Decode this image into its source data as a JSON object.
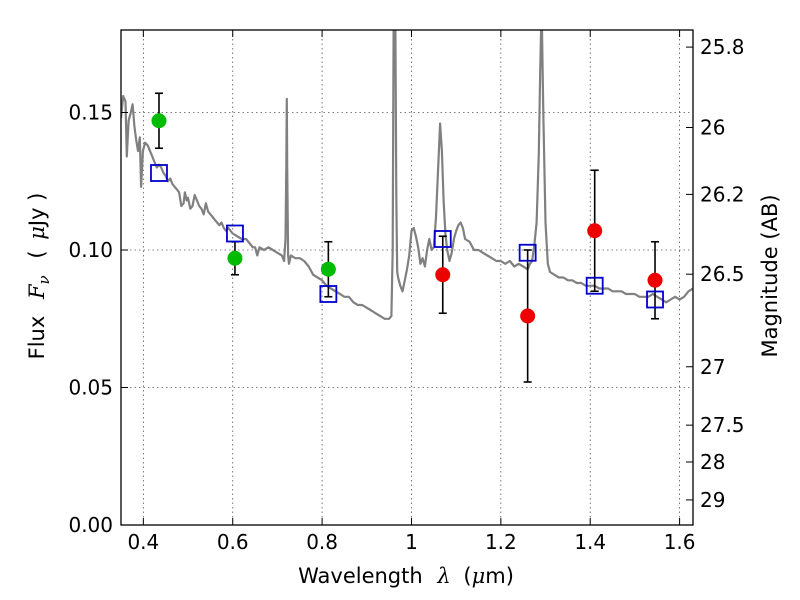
{
  "chart_data": {
    "type": "scatter",
    "title": "",
    "xlabel": {
      "prefix": "Wavelength",
      "symbol": "λ",
      "unit_open": "(",
      "unit_mu": "μ",
      "unit_rest": "m)"
    },
    "ylabel": {
      "prefix": "Flux",
      "symbol": "F",
      "subscript": "ν",
      "unit_open": "(",
      "unit_mu": "μ",
      "unit_rest": "Jy )"
    },
    "ylabel_right": "Magnitude (AB)",
    "xlim": [
      0.35,
      1.63
    ],
    "ylim": [
      0.0,
      0.18
    ],
    "grid": true,
    "x_ticks": [
      {
        "value": 0.4,
        "label": "0.4"
      },
      {
        "value": 0.6,
        "label": "0.6"
      },
      {
        "value": 0.8,
        "label": "0.8"
      },
      {
        "value": 1.0,
        "label": "1"
      },
      {
        "value": 1.2,
        "label": "1.2"
      },
      {
        "value": 1.4,
        "label": "1.4"
      },
      {
        "value": 1.6,
        "label": "1.6"
      }
    ],
    "y_ticks": [
      {
        "value": 0.0,
        "label": "0.00"
      },
      {
        "value": 0.05,
        "label": "0.05"
      },
      {
        "value": 0.1,
        "label": "0.10"
      },
      {
        "value": 0.15,
        "label": "0.15"
      }
    ],
    "magnitude_ticks": [
      {
        "mag": 25.8,
        "label": "25.8"
      },
      {
        "mag": 26.0,
        "label": "26"
      },
      {
        "mag": 26.2,
        "label": "26.2"
      },
      {
        "mag": 26.5,
        "label": "26.5"
      },
      {
        "mag": 27.0,
        "label": "27"
      },
      {
        "mag": 27.5,
        "label": "27.5"
      },
      {
        "mag": 28.0,
        "label": "28"
      },
      {
        "mag": 29.0,
        "label": "29"
      }
    ],
    "colors": {
      "model": "#808080",
      "optical": "#00bb00",
      "nir": "#ee0000",
      "model_band": "#0000cc",
      "errorbar": "#000000",
      "grid": "#555555"
    },
    "series": [
      {
        "kind": "line",
        "points": [
          [
            0.35,
            0.148
          ],
          [
            0.355,
            0.156
          ],
          [
            0.36,
            0.154
          ],
          [
            0.363,
            0.134
          ],
          [
            0.367,
            0.147
          ],
          [
            0.372,
            0.15
          ],
          [
            0.376,
            0.153
          ],
          [
            0.38,
            0.145
          ],
          [
            0.384,
            0.14
          ],
          [
            0.388,
            0.136
          ],
          [
            0.392,
            0.141
          ],
          [
            0.395,
            0.123
          ],
          [
            0.399,
            0.136
          ],
          [
            0.404,
            0.139
          ],
          [
            0.41,
            0.138
          ],
          [
            0.415,
            0.136
          ],
          [
            0.42,
            0.134
          ],
          [
            0.425,
            0.132
          ],
          [
            0.43,
            0.13
          ],
          [
            0.435,
            0.131
          ],
          [
            0.44,
            0.13
          ],
          [
            0.445,
            0.128
          ],
          [
            0.45,
            0.127
          ],
          [
            0.455,
            0.125
          ],
          [
            0.46,
            0.126
          ],
          [
            0.465,
            0.124
          ],
          [
            0.47,
            0.123
          ],
          [
            0.475,
            0.122
          ],
          [
            0.48,
            0.121
          ],
          [
            0.485,
            0.116
          ],
          [
            0.49,
            0.117
          ],
          [
            0.493,
            0.121
          ],
          [
            0.497,
            0.118
          ],
          [
            0.5,
            0.119
          ],
          [
            0.505,
            0.115
          ],
          [
            0.51,
            0.116
          ],
          [
            0.515,
            0.12
          ],
          [
            0.52,
            0.118
          ],
          [
            0.525,
            0.116
          ],
          [
            0.53,
            0.115
          ],
          [
            0.535,
            0.113
          ],
          [
            0.54,
            0.117
          ],
          [
            0.545,
            0.114
          ],
          [
            0.55,
            0.113
          ],
          [
            0.555,
            0.112
          ],
          [
            0.56,
            0.111
          ],
          [
            0.565,
            0.11
          ],
          [
            0.57,
            0.109
          ],
          [
            0.575,
            0.11
          ],
          [
            0.58,
            0.108
          ],
          [
            0.585,
            0.107
          ],
          [
            0.59,
            0.108
          ],
          [
            0.6,
            0.106
          ],
          [
            0.61,
            0.105
          ],
          [
            0.62,
            0.104
          ],
          [
            0.63,
            0.104
          ],
          [
            0.64,
            0.102
          ],
          [
            0.645,
            0.101
          ],
          [
            0.65,
            0.101
          ],
          [
            0.655,
            0.098
          ],
          [
            0.66,
            0.101
          ],
          [
            0.67,
            0.1
          ],
          [
            0.68,
            0.101
          ],
          [
            0.69,
            0.1
          ],
          [
            0.7,
            0.099
          ],
          [
            0.71,
            0.098
          ],
          [
            0.715,
            0.096
          ],
          [
            0.718,
            0.104
          ],
          [
            0.72,
            0.13
          ],
          [
            0.721,
            0.155
          ],
          [
            0.722,
            0.13
          ],
          [
            0.724,
            0.098
          ],
          [
            0.726,
            0.095
          ],
          [
            0.73,
            0.098
          ],
          [
            0.74,
            0.097
          ],
          [
            0.75,
            0.097
          ],
          [
            0.76,
            0.096
          ],
          [
            0.77,
            0.094
          ],
          [
            0.78,
            0.091
          ],
          [
            0.79,
            0.09
          ],
          [
            0.8,
            0.089
          ],
          [
            0.81,
            0.087
          ],
          [
            0.82,
            0.086
          ],
          [
            0.83,
            0.085
          ],
          [
            0.84,
            0.084
          ],
          [
            0.85,
            0.083
          ],
          [
            0.86,
            0.083
          ],
          [
            0.87,
            0.081
          ],
          [
            0.88,
            0.08
          ],
          [
            0.89,
            0.08
          ],
          [
            0.9,
            0.079
          ],
          [
            0.91,
            0.078
          ],
          [
            0.92,
            0.077
          ],
          [
            0.93,
            0.076
          ],
          [
            0.94,
            0.075
          ],
          [
            0.95,
            0.075
          ],
          [
            0.955,
            0.076
          ],
          [
            0.958,
            0.1
          ],
          [
            0.96,
            0.18
          ],
          [
            0.962,
            0.18
          ],
          [
            0.964,
            0.18
          ],
          [
            0.966,
            0.12
          ],
          [
            0.968,
            0.092
          ],
          [
            0.97,
            0.09
          ],
          [
            0.975,
            0.087
          ],
          [
            0.98,
            0.085
          ],
          [
            0.985,
            0.089
          ],
          [
            0.99,
            0.093
          ],
          [
            0.995,
            0.098
          ],
          [
            1.0,
            0.107
          ],
          [
            1.005,
            0.108
          ],
          [
            1.01,
            0.105
          ],
          [
            1.015,
            0.101
          ],
          [
            1.02,
            0.095
          ],
          [
            1.025,
            0.097
          ],
          [
            1.03,
            0.094
          ],
          [
            1.035,
            0.1
          ],
          [
            1.04,
            0.104
          ],
          [
            1.045,
            0.1
          ],
          [
            1.05,
            0.101
          ],
          [
            1.055,
            0.112
          ],
          [
            1.06,
            0.131
          ],
          [
            1.064,
            0.146
          ],
          [
            1.068,
            0.136
          ],
          [
            1.072,
            0.118
          ],
          [
            1.076,
            0.106
          ],
          [
            1.08,
            0.1
          ],
          [
            1.085,
            0.096
          ],
          [
            1.09,
            0.099
          ],
          [
            1.095,
            0.104
          ],
          [
            1.1,
            0.107
          ],
          [
            1.105,
            0.109
          ],
          [
            1.11,
            0.11
          ],
          [
            1.115,
            0.108
          ],
          [
            1.12,
            0.104
          ],
          [
            1.13,
            0.103
          ],
          [
            1.14,
            0.1
          ],
          [
            1.15,
            0.1
          ],
          [
            1.16,
            0.099
          ],
          [
            1.17,
            0.098
          ],
          [
            1.18,
            0.097
          ],
          [
            1.19,
            0.096
          ],
          [
            1.2,
            0.096
          ],
          [
            1.21,
            0.095
          ],
          [
            1.22,
            0.096
          ],
          [
            1.23,
            0.094
          ],
          [
            1.24,
            0.095
          ],
          [
            1.25,
            0.094
          ],
          [
            1.26,
            0.093
          ],
          [
            1.265,
            0.095
          ],
          [
            1.27,
            0.096
          ],
          [
            1.275,
            0.102
          ],
          [
            1.28,
            0.11
          ],
          [
            1.285,
            0.135
          ],
          [
            1.288,
            0.165
          ],
          [
            1.29,
            0.18
          ],
          [
            1.292,
            0.18
          ],
          [
            1.295,
            0.15
          ],
          [
            1.3,
            0.11
          ],
          [
            1.305,
            0.095
          ],
          [
            1.31,
            0.092
          ],
          [
            1.32,
            0.091
          ],
          [
            1.33,
            0.09
          ],
          [
            1.34,
            0.09
          ],
          [
            1.35,
            0.089
          ],
          [
            1.36,
            0.089
          ],
          [
            1.37,
            0.088
          ],
          [
            1.38,
            0.088
          ],
          [
            1.39,
            0.087
          ],
          [
            1.4,
            0.087
          ],
          [
            1.41,
            0.087
          ],
          [
            1.42,
            0.086
          ],
          [
            1.43,
            0.086
          ],
          [
            1.44,
            0.086
          ],
          [
            1.45,
            0.085
          ],
          [
            1.46,
            0.085
          ],
          [
            1.47,
            0.085
          ],
          [
            1.48,
            0.084
          ],
          [
            1.49,
            0.084
          ],
          [
            1.5,
            0.084
          ],
          [
            1.51,
            0.083
          ],
          [
            1.52,
            0.083
          ],
          [
            1.53,
            0.083
          ],
          [
            1.54,
            0.084
          ],
          [
            1.55,
            0.083
          ],
          [
            1.56,
            0.082
          ],
          [
            1.57,
            0.081
          ],
          [
            1.58,
            0.082
          ],
          [
            1.59,
            0.083
          ],
          [
            1.6,
            0.082
          ],
          [
            1.61,
            0.083
          ],
          [
            1.62,
            0.085
          ],
          [
            1.63,
            0.086
          ]
        ]
      },
      {
        "kind": "points-circle",
        "color_key": "optical",
        "points": [
          {
            "x": 0.435,
            "y": 0.147,
            "yerr": 0.01
          },
          {
            "x": 0.605,
            "y": 0.097,
            "yerr": 0.006
          },
          {
            "x": 0.814,
            "y": 0.093,
            "yerr": 0.01
          }
        ]
      },
      {
        "kind": "points-circle",
        "color_key": "nir",
        "points": [
          {
            "x": 1.07,
            "y": 0.091,
            "yerr": 0.014
          },
          {
            "x": 1.26,
            "y": 0.076,
            "yerr": 0.024
          },
          {
            "x": 1.41,
            "y": 0.107,
            "yerr": 0.022
          },
          {
            "x": 1.545,
            "y": 0.089,
            "yerr": 0.014
          }
        ]
      },
      {
        "kind": "points-square",
        "color_key": "model_band",
        "points": [
          {
            "x": 0.435,
            "y": 0.128
          },
          {
            "x": 0.605,
            "y": 0.106
          },
          {
            "x": 0.814,
            "y": 0.084
          },
          {
            "x": 1.07,
            "y": 0.104
          },
          {
            "x": 1.26,
            "y": 0.099
          },
          {
            "x": 1.41,
            "y": 0.087
          },
          {
            "x": 1.545,
            "y": 0.082
          }
        ]
      }
    ]
  }
}
